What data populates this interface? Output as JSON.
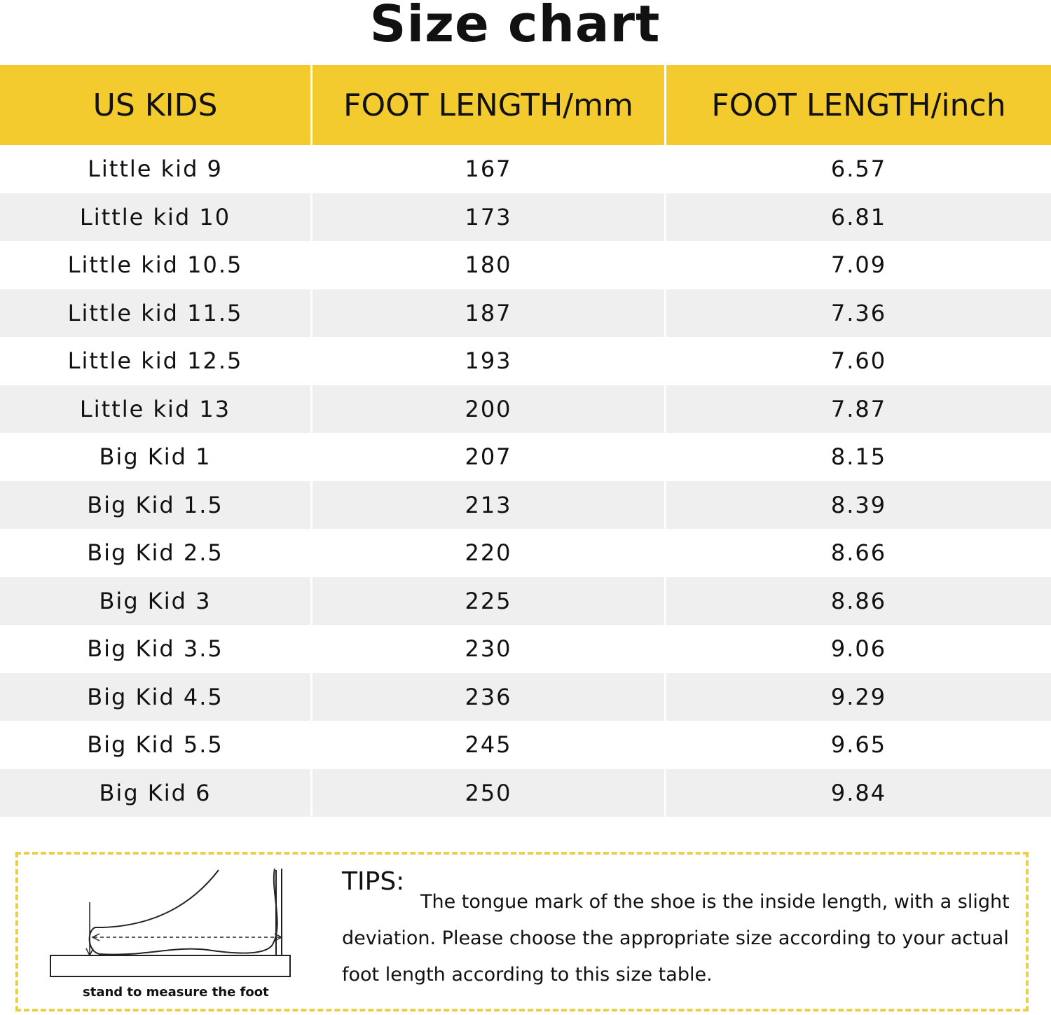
{
  "title": "Size chart",
  "table": {
    "headers": [
      "US KIDS",
      "FOOT LENGTH/mm",
      "FOOT LENGTH/inch"
    ],
    "rows": [
      [
        "Little kid 9",
        "167",
        "6.57"
      ],
      [
        "Little kid 10",
        "173",
        "6.81"
      ],
      [
        "Little kid 10.5",
        "180",
        "7.09"
      ],
      [
        "Little kid 11.5",
        "187",
        "7.36"
      ],
      [
        "Little kid 12.5",
        "193",
        "7.60"
      ],
      [
        "Little kid 13",
        "200",
        "7.87"
      ],
      [
        "Big Kid 1",
        "207",
        "8.15"
      ],
      [
        "Big Kid 1.5",
        "213",
        "8.39"
      ],
      [
        "Big Kid 2.5",
        "220",
        "8.66"
      ],
      [
        "Big Kid 3",
        "225",
        "8.86"
      ],
      [
        "Big Kid 3.5",
        "230",
        "9.06"
      ],
      [
        "Big Kid 4.5",
        "236",
        "9.29"
      ],
      [
        "Big Kid 5.5",
        "245",
        "9.65"
      ],
      [
        "Big Kid 6",
        "250",
        "9.84"
      ]
    ]
  },
  "tips": {
    "label": "TIPS:",
    "text": "The tongue mark of the shoe is the inside length, with a slight deviation. Please choose the appropriate size according to your actual foot length according to this size table.",
    "caption": "stand to measure the foot"
  }
}
